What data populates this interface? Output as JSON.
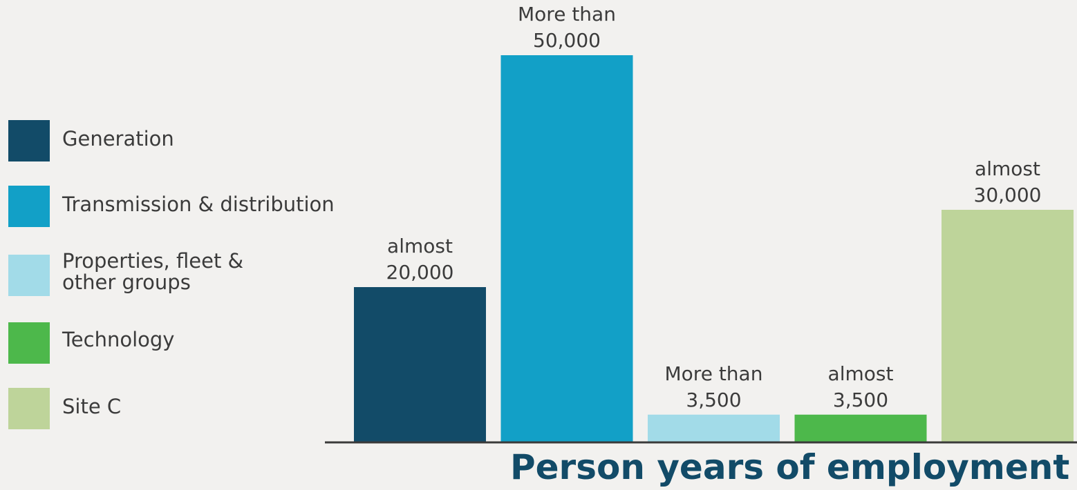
{
  "chart_data": {
    "type": "bar",
    "xlabel": "Person years of employment",
    "categories": [
      "Generation",
      "Transmission & distribution",
      "Properties, fleet & other groups",
      "Technology",
      "Site C"
    ],
    "values": [
      20000,
      50000,
      3500,
      3500,
      30000
    ],
    "data_labels": [
      [
        "almost",
        "20,000"
      ],
      [
        "More than",
        "50,000"
      ],
      [
        "More than",
        "3,500"
      ],
      [
        "almost",
        "3,500"
      ],
      [
        "almost",
        "30,000"
      ]
    ],
    "colors": [
      "#124b68",
      "#12a0c7",
      "#a2dbe8",
      "#4db84b",
      "#bed49a"
    ],
    "ylim": [
      0,
      50000
    ],
    "grid": false,
    "legend_position": "left",
    "legend": [
      {
        "label": "Generation",
        "color": "#124b68"
      },
      {
        "label": "Transmission & distribution",
        "color": "#12a0c7"
      },
      {
        "label": "Properties, fleet &\nother groups",
        "color": "#a2dbe8"
      },
      {
        "label": "Technology",
        "color": "#4db84b"
      },
      {
        "label": "Site C",
        "color": "#bed49a"
      }
    ]
  }
}
